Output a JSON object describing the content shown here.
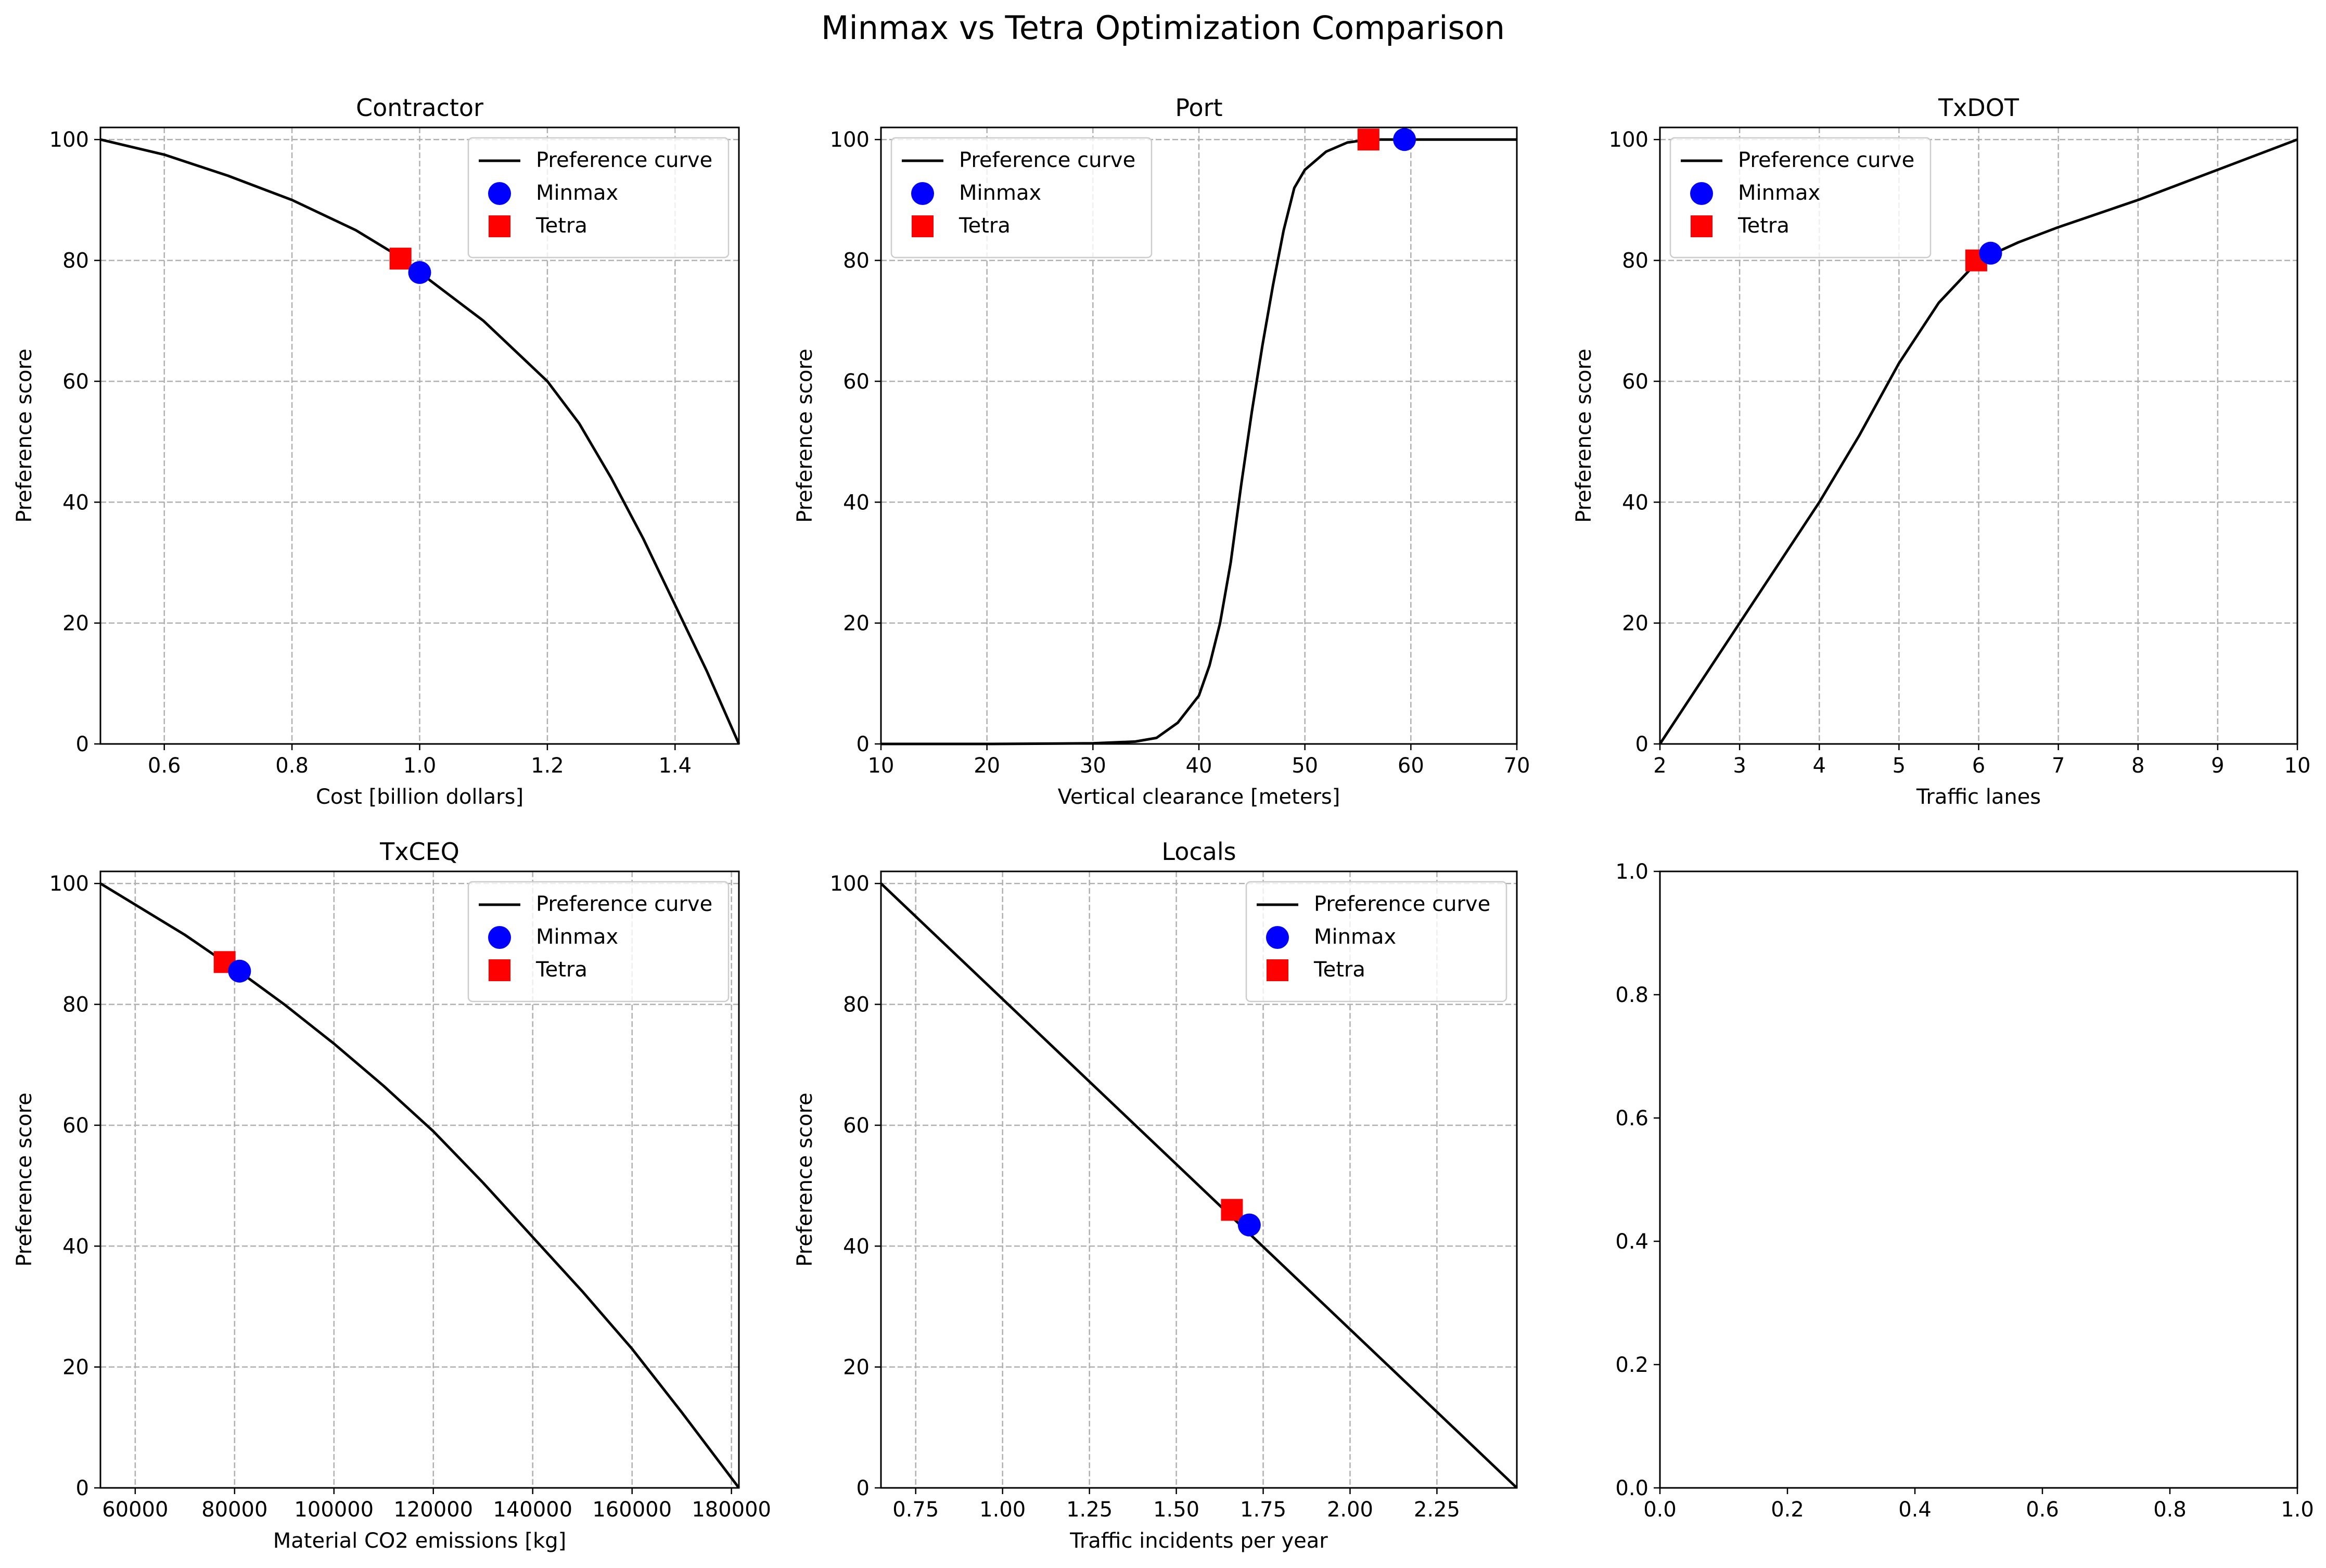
{
  "figure": {
    "title": "Minmax vs Tetra Optimization Comparison"
  },
  "legend_labels": {
    "curve": "Preference curve",
    "minmax": "Minmax",
    "tetra": "Tetra"
  },
  "colors": {
    "curve": "#000000",
    "minmax": "#0000ff",
    "tetra": "#ff0000",
    "grid": "#b0b0b0"
  },
  "chart_data": [
    {
      "type": "line",
      "title": "Contractor",
      "xlabel": "Cost [billion dollars]",
      "ylabel": "Preference score",
      "xlim": [
        0.5,
        1.5
      ],
      "ylim": [
        0,
        102
      ],
      "xticks": [
        0.6,
        0.8,
        1.0,
        1.2,
        1.4
      ],
      "xtick_labels": [
        "0.6",
        "0.8",
        "1.0",
        "1.2",
        "1.4"
      ],
      "yticks": [
        0,
        20,
        40,
        60,
        80,
        100
      ],
      "ytick_labels": [
        "0",
        "20",
        "40",
        "60",
        "80",
        "100"
      ],
      "grid": true,
      "legend_position": "upper right",
      "series": [
        {
          "name": "Preference curve",
          "x": [
            0.5,
            0.6,
            0.7,
            0.8,
            0.9,
            0.97,
            1.0,
            1.1,
            1.2,
            1.25,
            1.3,
            1.35,
            1.4,
            1.45,
            1.5
          ],
          "y": [
            100,
            97.5,
            94,
            90,
            85,
            80.5,
            78,
            70,
            60,
            53,
            44,
            34,
            23,
            12,
            0
          ]
        }
      ],
      "points": {
        "minmax": {
          "x": 1.0,
          "y": 78
        },
        "tetra": {
          "x": 0.97,
          "y": 80.3
        }
      }
    },
    {
      "type": "line",
      "title": "Port",
      "xlabel": "Vertical clearance [meters]",
      "ylabel": "Preference score",
      "xlim": [
        10,
        70
      ],
      "ylim": [
        0,
        102
      ],
      "xticks": [
        10,
        20,
        30,
        40,
        50,
        60,
        70
      ],
      "xtick_labels": [
        "10",
        "20",
        "30",
        "40",
        "50",
        "60",
        "70"
      ],
      "yticks": [
        0,
        20,
        40,
        60,
        80,
        100
      ],
      "ytick_labels": [
        "0",
        "20",
        "40",
        "60",
        "80",
        "100"
      ],
      "grid": true,
      "legend_position": "upper left",
      "series": [
        {
          "name": "Preference curve",
          "x": [
            10,
            20,
            30,
            34,
            36,
            38,
            40,
            41,
            42,
            43,
            44,
            45,
            46,
            47,
            48,
            49,
            50,
            52,
            54,
            56,
            60,
            70
          ],
          "y": [
            0,
            0,
            0.1,
            0.4,
            1,
            3.5,
            8,
            13,
            20,
            30,
            43,
            55,
            66,
            76,
            85,
            92,
            95,
            98,
            99.5,
            100,
            100,
            100
          ]
        }
      ],
      "points": {
        "minmax": {
          "x": 59.4,
          "y": 100
        },
        "tetra": {
          "x": 56,
          "y": 100
        }
      }
    },
    {
      "type": "line",
      "title": "TxDOT",
      "xlabel": "Traffic lanes",
      "ylabel": "Preference score",
      "xlim": [
        2,
        10
      ],
      "ylim": [
        0,
        102
      ],
      "xticks": [
        2,
        3,
        4,
        5,
        6,
        7,
        8,
        9,
        10
      ],
      "xtick_labels": [
        "2",
        "3",
        "4",
        "5",
        "6",
        "7",
        "8",
        "9",
        "10"
      ],
      "yticks": [
        0,
        20,
        40,
        60,
        80,
        100
      ],
      "ytick_labels": [
        "0",
        "20",
        "40",
        "60",
        "80",
        "100"
      ],
      "grid": true,
      "legend_position": "upper left",
      "series": [
        {
          "name": "Preference curve",
          "x": [
            2,
            3,
            4,
            4.5,
            5,
            5.5,
            6,
            6.5,
            7,
            8,
            9,
            10
          ],
          "y": [
            0,
            20,
            40,
            51,
            63,
            73,
            80,
            83,
            85.5,
            90,
            95,
            100
          ]
        }
      ],
      "points": {
        "minmax": {
          "x": 6.15,
          "y": 81.2
        },
        "tetra": {
          "x": 5.97,
          "y": 80
        }
      }
    },
    {
      "type": "line",
      "title": "TxCEQ",
      "xlabel": "Material CO2 emissions [kg]",
      "ylabel": "Preference score",
      "xlim": [
        53000,
        181500
      ],
      "ylim": [
        0,
        102
      ],
      "xticks": [
        60000,
        80000,
        100000,
        120000,
        140000,
        160000,
        180000
      ],
      "xtick_labels": [
        "60000",
        "80000",
        "100000",
        "120000",
        "140000",
        "160000",
        "180000"
      ],
      "yticks": [
        0,
        20,
        40,
        60,
        80,
        100
      ],
      "ytick_labels": [
        "0",
        "20",
        "40",
        "60",
        "80",
        "100"
      ],
      "grid": true,
      "legend_position": "upper right",
      "series": [
        {
          "name": "Preference curve",
          "x": [
            53000,
            60000,
            70000,
            78000,
            80000,
            90000,
            100000,
            110000,
            120000,
            130000,
            140000,
            150000,
            160000,
            170000,
            181500
          ],
          "y": [
            100,
            96.5,
            91.5,
            87,
            86,
            80,
            73.5,
            66.5,
            59,
            50.5,
            41.5,
            32.5,
            23,
            12.5,
            0
          ]
        }
      ],
      "points": {
        "minmax": {
          "x": 81000,
          "y": 85.5
        },
        "tetra": {
          "x": 78000,
          "y": 87
        }
      }
    },
    {
      "type": "line",
      "title": "Locals",
      "xlabel": "Traffic incidents per year",
      "ylabel": "Preference score",
      "xlim": [
        0.65,
        2.48
      ],
      "ylim": [
        0,
        102
      ],
      "xticks": [
        0.75,
        1.0,
        1.25,
        1.5,
        1.75,
        2.0,
        2.25
      ],
      "xtick_labels": [
        "0.75",
        "1.00",
        "1.25",
        "1.50",
        "1.75",
        "2.00",
        "2.25"
      ],
      "yticks": [
        0,
        20,
        40,
        60,
        80,
        100
      ],
      "ytick_labels": [
        "0",
        "20",
        "40",
        "60",
        "80",
        "100"
      ],
      "grid": true,
      "legend_position": "upper right",
      "series": [
        {
          "name": "Preference curve",
          "x": [
            0.65,
            2.48
          ],
          "y": [
            100,
            0
          ]
        }
      ],
      "points": {
        "minmax": {
          "x": 1.71,
          "y": 43.5
        },
        "tetra": {
          "x": 1.66,
          "y": 46
        }
      }
    },
    {
      "type": "line",
      "title": "",
      "xlabel": "",
      "ylabel": "",
      "xlim": [
        0,
        1
      ],
      "ylim": [
        0,
        1
      ],
      "xticks": [
        0,
        0.2,
        0.4,
        0.6,
        0.8,
        1.0
      ],
      "xtick_labels": [
        "0.0",
        "0.2",
        "0.4",
        "0.6",
        "0.8",
        "1.0"
      ],
      "yticks": [
        0,
        0.2,
        0.4,
        0.6,
        0.8,
        1.0
      ],
      "ytick_labels": [
        "0.0",
        "0.2",
        "0.4",
        "0.6",
        "0.8",
        "1.0"
      ],
      "grid": false,
      "series": []
    }
  ]
}
